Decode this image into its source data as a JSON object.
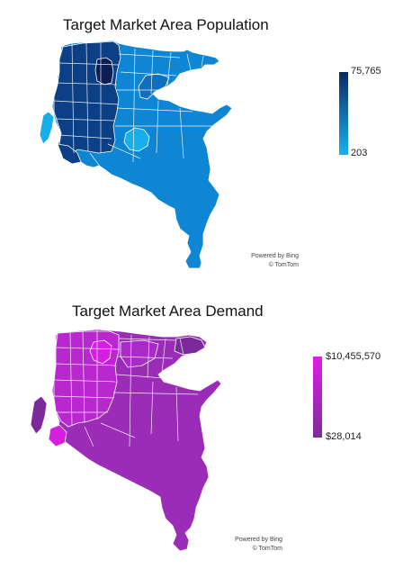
{
  "maps": [
    {
      "title": "Target Market Area Population",
      "legend": {
        "max_label": "75,765",
        "min_label": "203",
        "color_high": "#0b2a63",
        "color_low": "#17b2ee"
      },
      "attribution": {
        "line1": "Powered by Bing",
        "line2": "© TomTom"
      },
      "colors": {
        "base": "#0e86d4",
        "dark": "#0b3f86",
        "darkest": "#0a1f55",
        "light": "#17aeea",
        "mid": "#0f6fbf",
        "border": "#ffffff"
      }
    },
    {
      "title": "Target Market Area Demand",
      "legend": {
        "max_label": "$10,455,570",
        "min_label": "$28,014",
        "color_high": "#e11ce8",
        "color_low": "#7b2d98"
      },
      "attribution": {
        "line1": "Powered by Bing",
        "line2": "© TomTom"
      },
      "colors": {
        "base": "#9a2cb8",
        "dark": "#7a2a9a",
        "bright": "#d61ee0",
        "light": "#b928cf",
        "mid": "#a92ac4",
        "border": "#ffffff"
      }
    }
  ]
}
